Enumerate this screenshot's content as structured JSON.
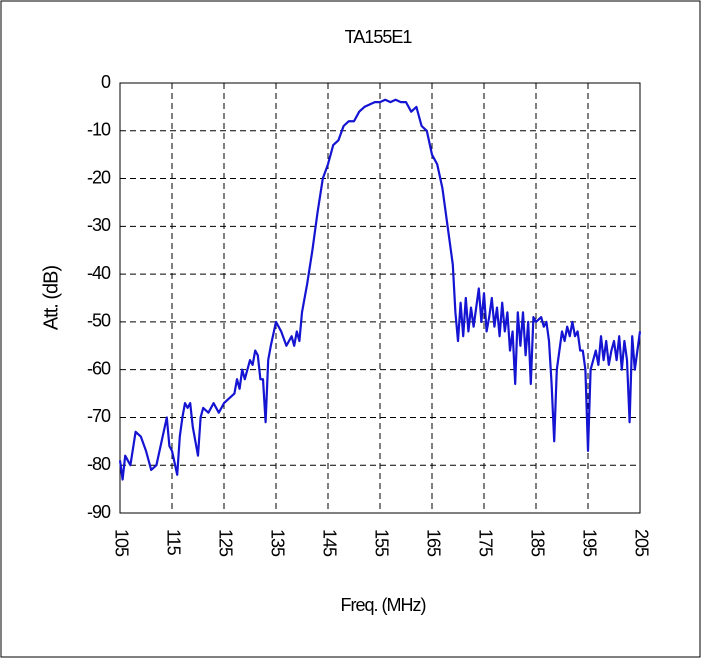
{
  "chart_data": {
    "type": "line",
    "title": "TA155E1",
    "x_label": "Freq. (MHz)",
    "y_label": "Att. (dB)",
    "x": [
      105,
      105.5,
      106,
      107,
      108,
      109,
      110,
      111,
      112,
      113,
      114,
      114.5,
      115,
      116,
      116.5,
      117,
      117.5,
      118,
      118.5,
      119,
      120,
      120.5,
      121,
      122,
      123,
      124,
      125,
      126,
      127,
      127.5,
      128,
      128.5,
      129,
      130,
      130.5,
      131,
      131.5,
      132,
      132.5,
      133,
      133.5,
      134,
      135,
      136,
      137,
      138,
      138.5,
      139,
      139.5,
      140,
      141,
      142,
      143,
      144,
      145,
      146,
      147,
      148,
      149,
      150,
      151,
      152,
      153,
      154,
      155,
      156,
      157,
      158,
      159,
      160,
      161,
      162,
      163,
      164,
      165,
      166,
      167,
      168,
      169,
      169.5,
      170,
      170.5,
      171,
      171.5,
      172,
      172.5,
      173,
      174,
      174.5,
      175,
      175.5,
      176,
      176.5,
      177,
      177.5,
      178,
      178.5,
      179,
      179.5,
      180,
      180.5,
      181,
      181.5,
      182,
      182.5,
      183,
      183.5,
      184,
      184.5,
      185,
      186,
      186.5,
      187,
      187.5,
      188,
      188.5,
      189,
      189.5,
      190,
      190.5,
      191,
      191.5,
      192,
      192.5,
      193,
      193.5,
      194,
      194.5,
      195,
      195.5,
      196,
      196.5,
      197,
      197.5,
      198,
      198.5,
      199,
      199.5,
      200,
      200.5,
      201,
      201.5,
      202,
      202.5,
      203,
      203.5,
      204,
      204.5,
      205
    ],
    "series": [
      {
        "name": "TA155E1",
        "color": "#1414d2",
        "values": [
          -79,
          -83,
          -78,
          -80,
          -73,
          -74,
          -77,
          -81,
          -80,
          -75,
          -70,
          -76,
          -77,
          -82,
          -74,
          -70,
          -67,
          -68,
          -67,
          -72,
          -78,
          -70,
          -68,
          -69,
          -67,
          -69,
          -67,
          -66,
          -65,
          -62,
          -64,
          -60,
          -62,
          -58,
          -59,
          -56,
          -57,
          -62,
          -62,
          -71,
          -58,
          -55,
          -50,
          -52,
          -55,
          -53,
          -55,
          -52,
          -54,
          -48,
          -42,
          -35,
          -27,
          -20,
          -17,
          -13,
          -12,
          -9,
          -8,
          -8,
          -6,
          -5,
          -4.5,
          -4,
          -4,
          -3.5,
          -4,
          -3.5,
          -4,
          -4,
          -6,
          -5,
          -9,
          -10,
          -15,
          -17,
          -22,
          -30,
          -38,
          -48,
          -54,
          -46,
          -53,
          -45,
          -52,
          -47,
          -51,
          -43,
          -50,
          -44,
          -52,
          -49,
          -45,
          -51,
          -47,
          -53,
          -46,
          -52,
          -48,
          -56,
          -52,
          -63,
          -48,
          -55,
          -48,
          -57,
          -50,
          -63,
          -49,
          -50,
          -49,
          -51,
          -50,
          -54,
          -63,
          -75,
          -60,
          -56,
          -52,
          -54,
          -51,
          -53,
          -50,
          -53,
          -52,
          -56,
          -56,
          -60,
          -77,
          -60,
          -58,
          -56,
          -59,
          -53,
          -58,
          -54,
          -59,
          -56,
          -54,
          -58,
          -53,
          -60,
          -54,
          -58,
          -71,
          -53,
          -60,
          -56,
          -52
        ]
      }
    ],
    "xlim": [
      105,
      205
    ],
    "ylim": [
      -90,
      0
    ],
    "xticks": [
      105,
      115,
      125,
      135,
      145,
      155,
      165,
      175,
      185,
      195,
      205
    ],
    "yticks": [
      0,
      -10,
      -20,
      -30,
      -40,
      -50,
      -60,
      -70,
      -80,
      -90
    ],
    "grid": true
  }
}
